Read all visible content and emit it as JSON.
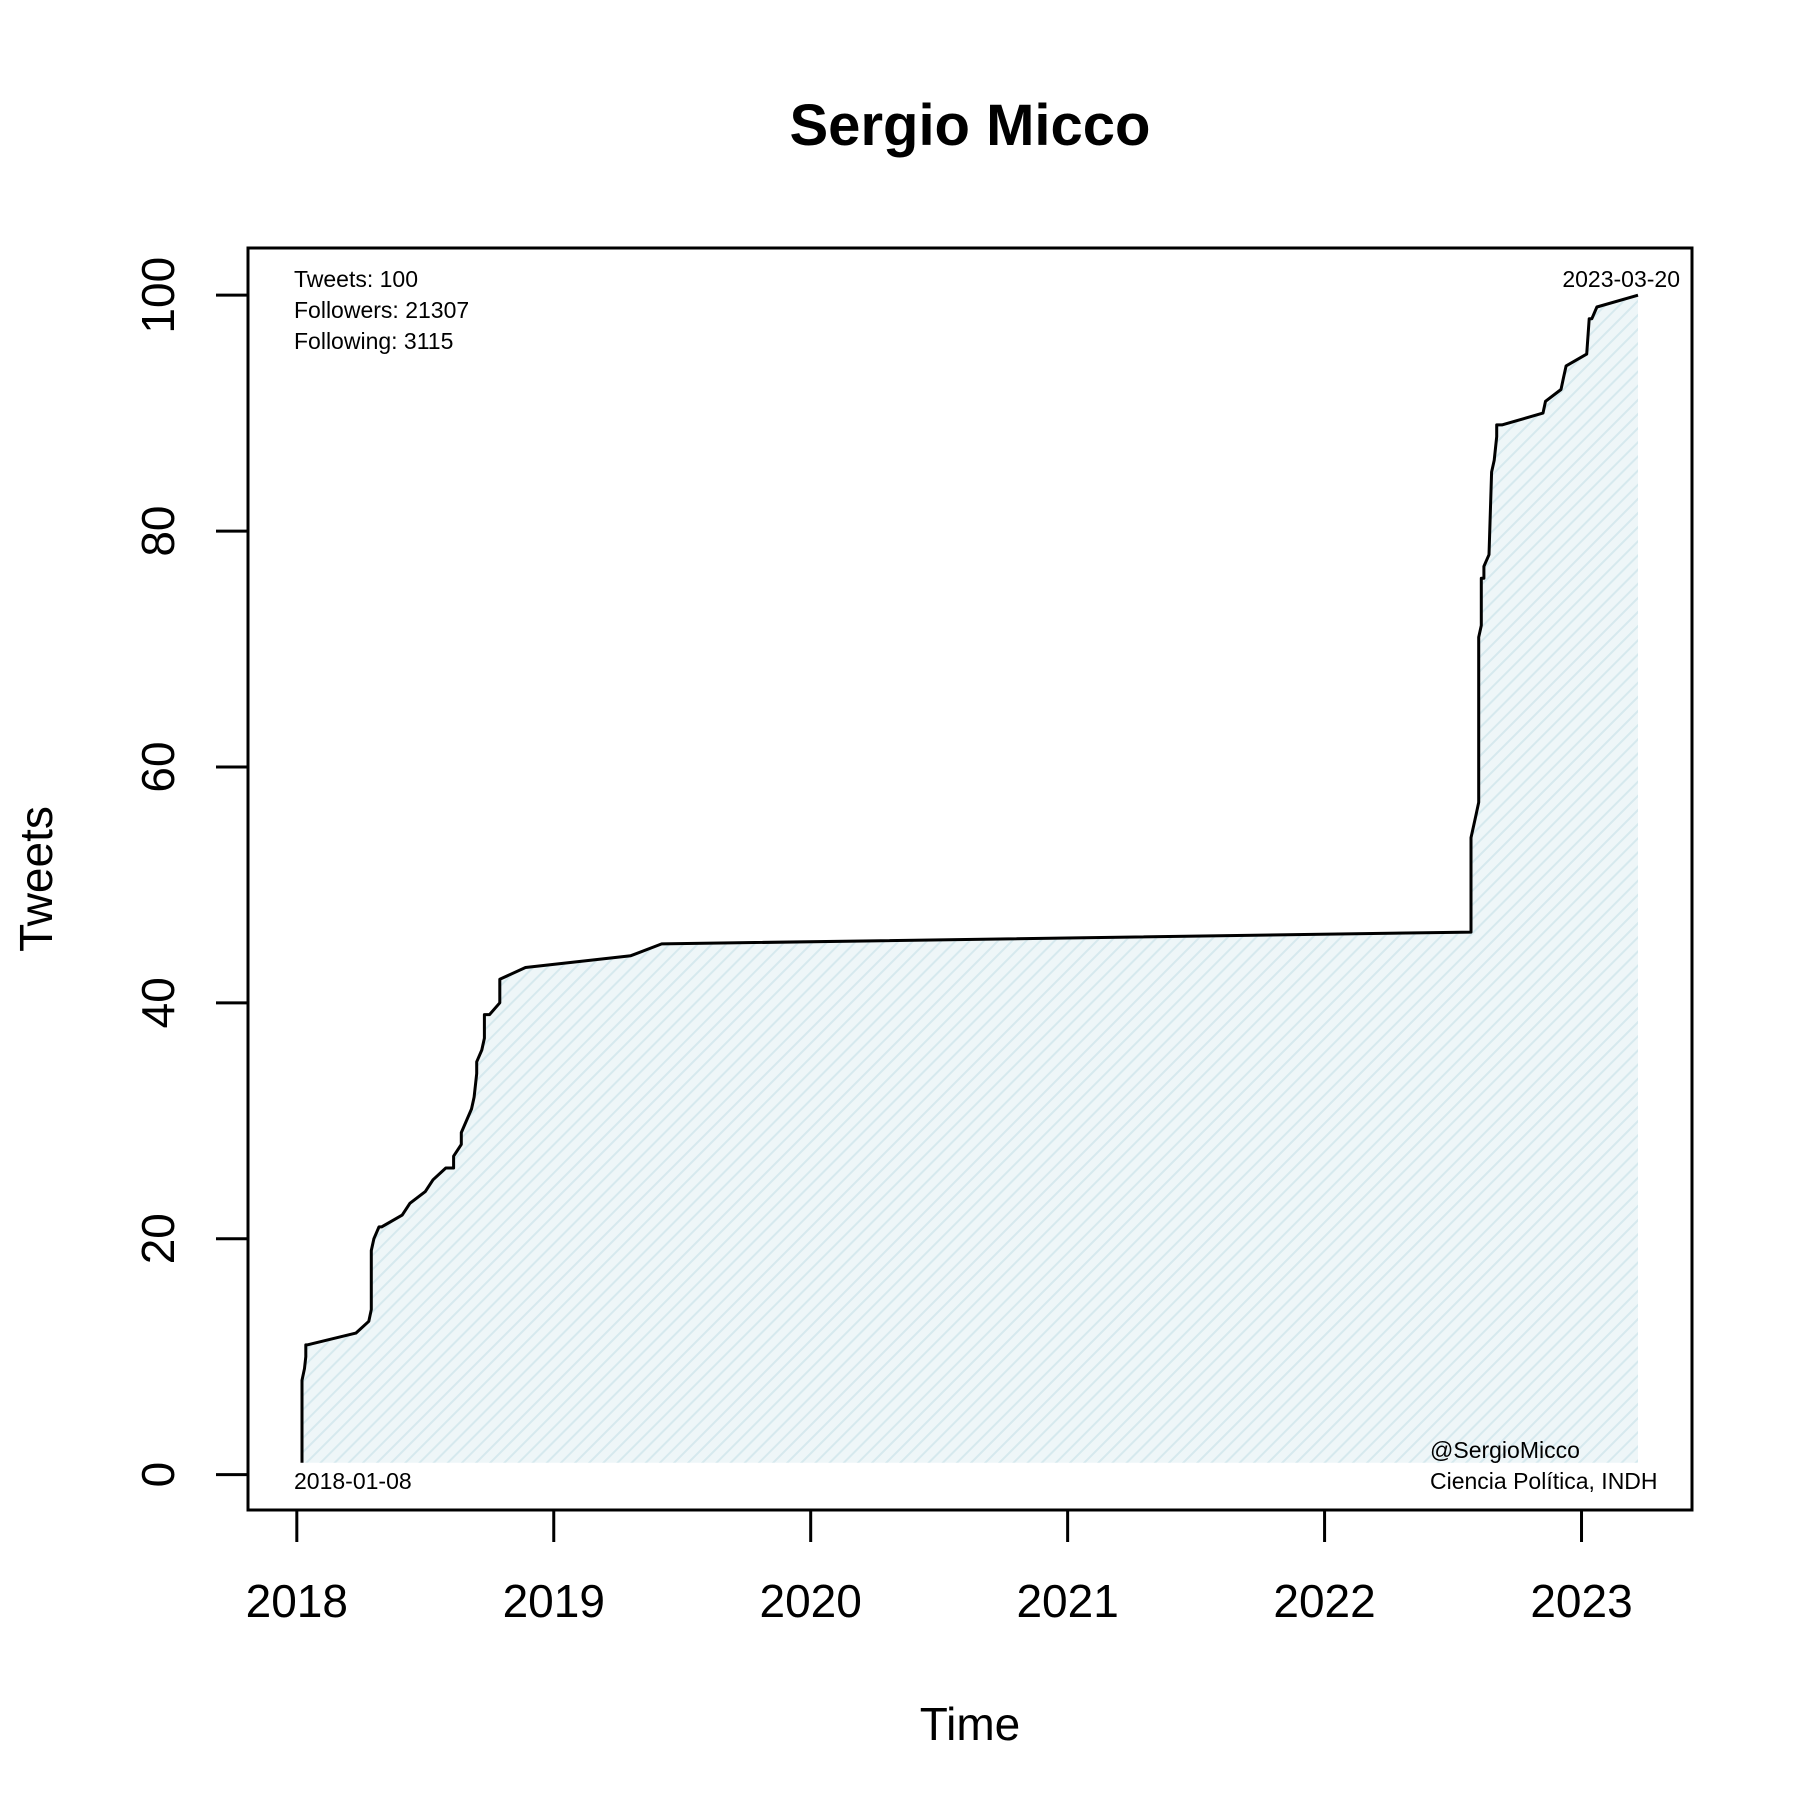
{
  "chart_data": {
    "type": "area",
    "title": "Sergio Micco",
    "xlabel": "Time",
    "ylabel": "Tweets",
    "x_ticks": [
      {
        "value": 2018.0,
        "label": "2018"
      },
      {
        "value": 2019.0,
        "label": "2019"
      },
      {
        "value": 2020.0,
        "label": "2020"
      },
      {
        "value": 2021.0,
        "label": "2021"
      },
      {
        "value": 2022.0,
        "label": "2022"
      },
      {
        "value": 2023.0,
        "label": "2023"
      }
    ],
    "y_ticks": [
      {
        "value": 0,
        "label": "0"
      },
      {
        "value": 20,
        "label": "20"
      },
      {
        "value": 40,
        "label": "40"
      },
      {
        "value": 60,
        "label": "60"
      },
      {
        "value": 80,
        "label": "80"
      },
      {
        "value": 100,
        "label": "100"
      }
    ],
    "xlim": [
      2017.81,
      2023.43
    ],
    "ylim": [
      -3,
      104
    ],
    "grid": false,
    "fill_color": "#e3f0f4",
    "line_color": "#000000",
    "series": [
      {
        "x": [
          2018.02,
          2018.02,
          2018.03,
          2018.035,
          2018.035,
          2018.04,
          2018.23,
          2018.28,
          2018.29,
          2018.29,
          2018.3,
          2018.32,
          2018.33,
          2018.41,
          2018.44,
          2018.5,
          2018.53,
          2018.58,
          2018.61,
          2018.61,
          2018.64,
          2018.64,
          2018.68,
          2018.69,
          2018.7,
          2018.7,
          2018.72,
          2018.73,
          2018.73,
          2018.75,
          2018.79,
          2018.79,
          2018.89,
          2019.3,
          2019.42,
          2022.57,
          2022.57,
          2022.58,
          2022.59,
          2022.6,
          2022.6,
          2022.61,
          2022.61,
          2022.62,
          2022.62,
          2022.64,
          2022.65,
          2022.66,
          2022.67,
          2022.67,
          2022.68,
          2022.69,
          2022.85,
          2022.86,
          2022.92,
          2022.93,
          2022.94,
          2023.02,
          2023.03,
          2023.04,
          2023.06,
          2023.22
        ],
        "y": [
          1,
          8,
          9,
          10,
          11,
          11,
          12,
          13,
          14,
          19,
          20,
          21,
          21,
          22,
          23,
          24,
          25,
          26,
          26,
          27,
          28,
          29,
          31,
          32,
          34,
          35,
          36,
          37,
          39,
          39,
          40,
          42,
          43,
          44,
          45,
          46,
          54,
          55,
          56,
          57,
          71,
          72,
          76,
          76,
          77,
          78,
          85,
          86,
          88,
          89,
          89,
          89,
          90,
          91,
          92,
          93,
          94,
          95,
          98,
          98,
          99,
          100
        ]
      }
    ],
    "annotations": {
      "stats": [
        "Tweets: 100",
        "Followers: 21307",
        "Following: 3115"
      ],
      "start_date": "2018-01-08",
      "end_date": "2023-03-20",
      "handle": "@SergioMicco",
      "description": "Ciencia Política, INDH"
    }
  }
}
